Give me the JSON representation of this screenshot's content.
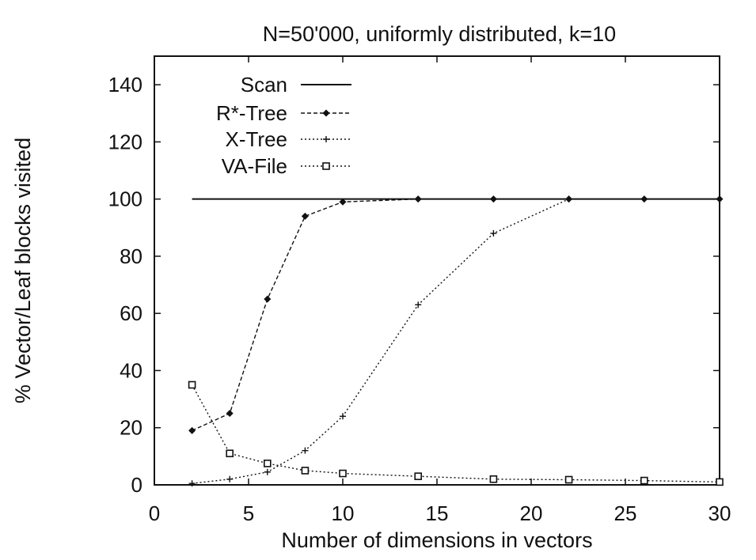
{
  "chart_data": {
    "type": "line",
    "title": "N=50'000, uniformly distributed, k=10",
    "xlabel": "Number of dimensions in vectors",
    "ylabel": "% Vector/Leaf blocks visited",
    "xlim": [
      0,
      30
    ],
    "ylim": [
      0,
      150
    ],
    "xticks": [
      "0",
      "5",
      "10",
      "15",
      "20",
      "25",
      "30"
    ],
    "yticks": [
      "0",
      "20",
      "40",
      "60",
      "80",
      "100",
      "120",
      "140"
    ],
    "grid": false,
    "legend_position": "top-left",
    "series": [
      {
        "name": "Scan",
        "line": "solid",
        "marker": "none",
        "x": [
          2,
          30
        ],
        "y": [
          100,
          100
        ]
      },
      {
        "name": "R*-Tree",
        "line": "dashed",
        "marker": "diamond",
        "x": [
          2,
          4,
          6,
          8,
          10,
          14,
          18,
          22,
          26,
          30
        ],
        "y": [
          19,
          25,
          65,
          94,
          99,
          100,
          100,
          100,
          100,
          100
        ]
      },
      {
        "name": "X-Tree",
        "line": "dotted",
        "marker": "plus",
        "x": [
          2,
          4,
          6,
          8,
          10,
          14,
          18,
          22
        ],
        "y": [
          0.5,
          2,
          4.5,
          12,
          24,
          63,
          88,
          100
        ]
      },
      {
        "name": "VA-File",
        "line": "dotted",
        "marker": "square",
        "x": [
          2,
          4,
          6,
          8,
          10,
          14,
          18,
          22,
          26,
          30
        ],
        "y": [
          35,
          11,
          7.5,
          5,
          4,
          3,
          2,
          1.8,
          1.5,
          1
        ]
      }
    ]
  }
}
